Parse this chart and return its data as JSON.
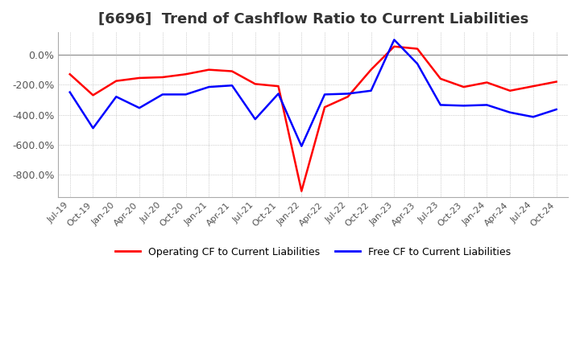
{
  "title": "[6696]  Trend of Cashflow Ratio to Current Liabilities",
  "background_color": "#ffffff",
  "plot_background": "#ffffff",
  "grid_color": "#aaaaaa",
  "title_fontsize": 13,
  "ylim": [
    -950,
    150
  ],
  "yticks": [
    0,
    -200,
    -400,
    -600,
    -800
  ],
  "ytick_labels": [
    "0.0%",
    "-200.0%",
    "-400.0%",
    "-600.0%",
    "-800.0%"
  ],
  "x_labels": [
    "Jul-19",
    "Oct-19",
    "Jan-20",
    "Apr-20",
    "Jul-20",
    "Oct-20",
    "Jan-21",
    "Apr-21",
    "Jul-21",
    "Oct-21",
    "Jan-22",
    "Apr-22",
    "Jul-22",
    "Oct-22",
    "Jan-23",
    "Apr-23",
    "Jul-23",
    "Oct-23",
    "Jan-24",
    "Apr-24",
    "Jul-24",
    "Oct-24"
  ],
  "operating_cf": [
    -130,
    -270,
    -175,
    -155,
    -150,
    -130,
    -100,
    -110,
    -195,
    -210,
    -910,
    -350,
    -280,
    -100,
    55,
    40,
    -160,
    -215,
    -185,
    -240,
    -210,
    -180
  ],
  "free_cf": [
    -250,
    -490,
    -280,
    -355,
    -265,
    -265,
    -215,
    -205,
    -430,
    -260,
    -610,
    -265,
    -260,
    -240,
    100,
    -60,
    -335,
    -340,
    -335,
    -385,
    -415,
    -365
  ],
  "operating_color": "#ff0000",
  "free_color": "#0000ff",
  "line_width": 1.8,
  "legend_labels": [
    "Operating CF to Current Liabilities",
    "Free CF to Current Liabilities"
  ]
}
